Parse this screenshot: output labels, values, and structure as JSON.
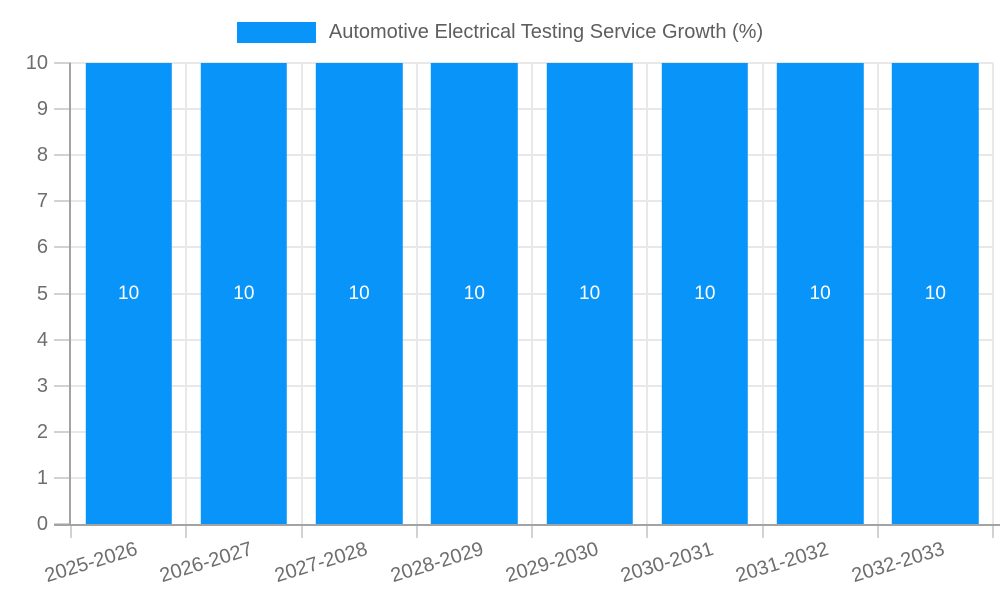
{
  "chart_data": {
    "type": "bar",
    "title": "Automotive Electrical Testing Service Growth (%)",
    "categories": [
      "2025-2026",
      "2026-2027",
      "2027-2028",
      "2028-2029",
      "2029-2030",
      "2030-2031",
      "2031-2032",
      "2032-2033"
    ],
    "series": [
      {
        "name": "Automotive Electrical Testing Service Growth (%)",
        "values": [
          10,
          10,
          10,
          10,
          10,
          10,
          10,
          10
        ]
      }
    ],
    "bar_value_labels": [
      "10",
      "10",
      "10",
      "10",
      "10",
      "10",
      "10",
      "10"
    ],
    "xlabel": "",
    "ylabel": "",
    "ylim": [
      0,
      10
    ],
    "y_ticks": [
      0,
      1,
      2,
      3,
      4,
      5,
      6,
      7,
      8,
      9,
      10
    ],
    "grid": true,
    "legend_position": "top-center",
    "x_label_rotation_deg": -17,
    "bar_width_fraction": 0.75,
    "colors": {
      "bar": "#0994FA",
      "bar_label": "#FFFFFF",
      "gridline": "#E8E8E8",
      "tick_mark": "#D2D2D2",
      "axis_line": "#A3A3A3",
      "axis_text": "#6E6E6E",
      "legend_text": "#5D5E60",
      "background": "#FFFFFF"
    }
  }
}
